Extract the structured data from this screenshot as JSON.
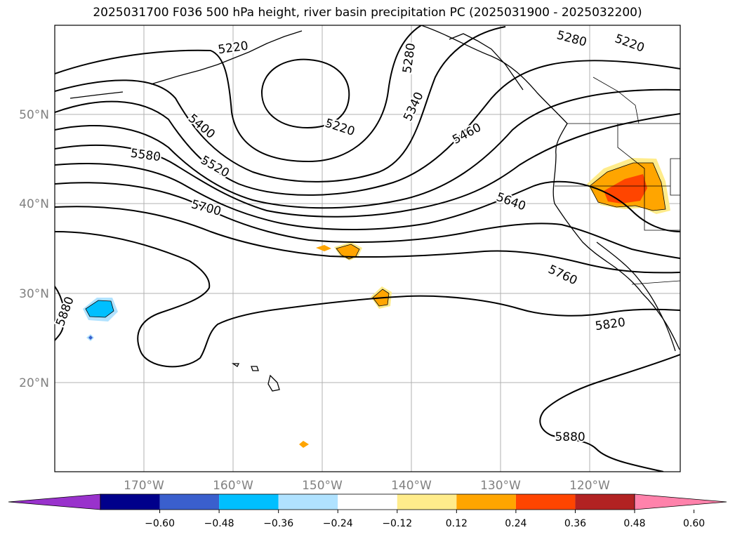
{
  "title": "2025031700 F036 500 hPa height, river basin precipitation PC (2025031900 - 2025032200)",
  "lat_labels": [
    "50°N",
    "40°N",
    "30°N",
    "20°N"
  ],
  "lon_labels": [
    "170°W",
    "160°W",
    "150°W",
    "140°W",
    "130°W",
    "120°W"
  ],
  "contour_labels": [
    {
      "text": "5220",
      "rot": -8,
      "lon": -160,
      "lat": 57.5
    },
    {
      "text": "5220",
      "rot": 18,
      "lon": -148,
      "lat": 48.6
    },
    {
      "text": "5220",
      "rot": 20,
      "lon": -115.5,
      "lat": 58.0
    },
    {
      "text": "5280",
      "rot": -82,
      "lon": -140.3,
      "lat": 56.3
    },
    {
      "text": "5280",
      "rot": 15,
      "lon": -122,
      "lat": 58.5
    },
    {
      "text": "5340",
      "rot": -65,
      "lon": -139.8,
      "lat": 50.9
    },
    {
      "text": "5400",
      "rot": 40,
      "lon": -163.5,
      "lat": 48.7
    },
    {
      "text": "5460",
      "rot": -28,
      "lon": -133.8,
      "lat": 47.9
    },
    {
      "text": "5520",
      "rot": 30,
      "lon": -162,
      "lat": 44.2
    },
    {
      "text": "5580",
      "rot": 8,
      "lon": -169.8,
      "lat": 45.5
    },
    {
      "text": "5640",
      "rot": 20,
      "lon": -128.8,
      "lat": 40.3
    },
    {
      "text": "5700",
      "rot": 15,
      "lon": -163,
      "lat": 39.6
    },
    {
      "text": "5760",
      "rot": 25,
      "lon": -123,
      "lat": 32.1
    },
    {
      "text": "5820",
      "rot": -8,
      "lon": -117.7,
      "lat": 26.6
    },
    {
      "text": "5880",
      "rot": -70,
      "lon": -178.9,
      "lat": 28.0
    },
    {
      "text": "5880",
      "rot": 0,
      "lon": -122.2,
      "lat": 14.0
    }
  ],
  "colorbar": {
    "colors": [
      "#9932CC",
      "#00008B",
      "#3A5FCD",
      "#00BFFF",
      "#B0E2FF",
      "#FFFFFF",
      "#FFEC8B",
      "#FFA500",
      "#FF4500",
      "#B22222",
      "#FF82AB"
    ],
    "ticks": [
      "−0.60",
      "−0.48",
      "−0.36",
      "−0.24",
      "−0.12",
      "0.12",
      "0.24",
      "0.36",
      "0.48",
      "0.60"
    ]
  }
}
